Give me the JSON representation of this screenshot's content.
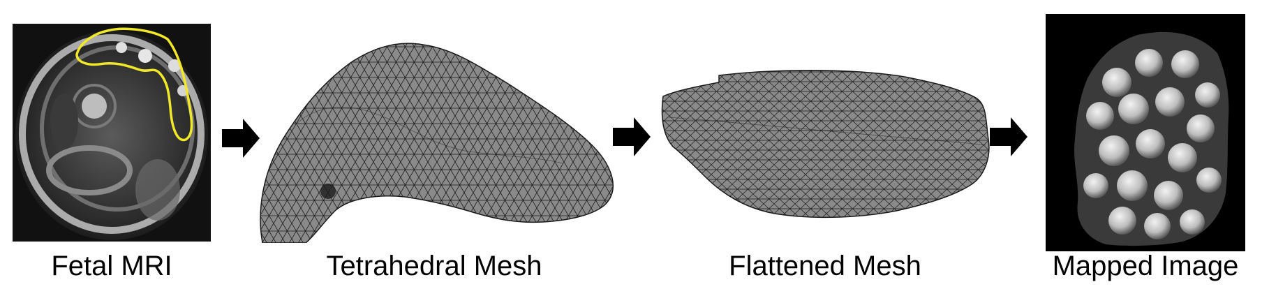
{
  "panels": [
    {
      "caption": "Fetal MRI"
    },
    {
      "caption": "Tetrahedral Mesh"
    },
    {
      "caption": "Flattened Mesh"
    },
    {
      "caption": "Mapped Image"
    }
  ],
  "colors": {
    "mri_outline": "#f2e82a",
    "mesh_fill": "#8a8a8a",
    "mesh_edge": "#1a1a1a",
    "arrow": "#000000",
    "background": "#ffffff",
    "image_background": "#000000"
  },
  "icons": {
    "arrow": "right-arrow-icon"
  }
}
